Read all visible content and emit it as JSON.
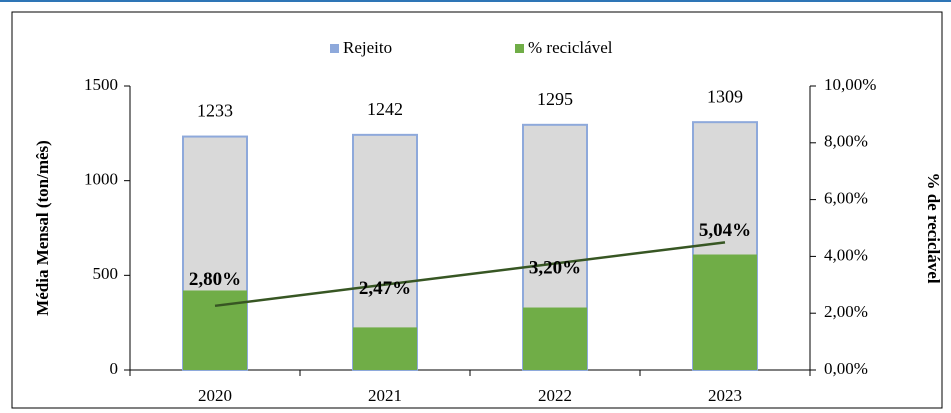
{
  "chart_data": {
    "type": "bar",
    "categories": [
      "2020",
      "2021",
      "2022",
      "2023"
    ],
    "series": [
      {
        "name": "Rejeito",
        "color": "#d9d9d9",
        "border": "#8ea9db",
        "values": [
          1233,
          1242,
          1295,
          1309
        ]
      },
      {
        "name": "% reciclável",
        "color": "#70ad47",
        "values": [
          420,
          225,
          330,
          610
        ]
      },
      {
        "name": "% reciclável",
        "color": "#375623",
        "axis": "y2",
        "trendline": true,
        "values": [
          2.8,
          2.47,
          3.2,
          5.04
        ],
        "value_labels": [
          "2,80%",
          "2,47%",
          "3,20%",
          "5,04%"
        ]
      }
    ],
    "ylabel": "Média Mensal (ton/mês)",
    "y2label": "% de reciclável",
    "ylim": [
      0,
      1500
    ],
    "yticks": [
      0,
      500,
      1000,
      1500
    ],
    "y2lim": [
      0,
      10
    ],
    "y2ticks": [
      {
        "value": 0,
        "label": "0,00%"
      },
      {
        "value": 2,
        "label": "2,00%"
      },
      {
        "value": 4,
        "label": "4,00%"
      },
      {
        "value": 6,
        "label": "6,00%"
      },
      {
        "value": 8,
        "label": "8,00%"
      },
      {
        "value": 10,
        "label": "10,00%"
      }
    ],
    "legend": "top"
  }
}
